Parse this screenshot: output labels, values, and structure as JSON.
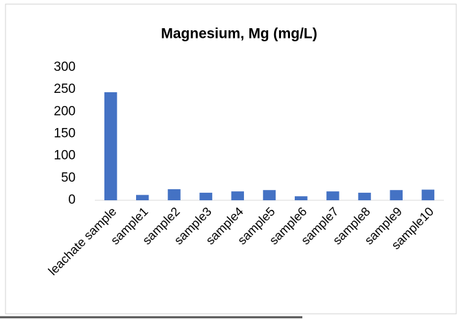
{
  "chart_data": {
    "type": "bar",
    "title": "Magnesium, Mg (mg/L)",
    "categories": [
      "leachate sample",
      "sample1",
      "sample2",
      "sample3",
      "sample4",
      "sample5",
      "sample6",
      "sample7",
      "sample8",
      "sample9",
      "sample10"
    ],
    "values": [
      244,
      12,
      25,
      17,
      20,
      23,
      9,
      20,
      17,
      23,
      24
    ],
    "color": "#4472c4",
    "ylim": [
      0,
      300
    ],
    "yticks": [
      0,
      50,
      100,
      150,
      200,
      250,
      300
    ],
    "grid": false
  }
}
